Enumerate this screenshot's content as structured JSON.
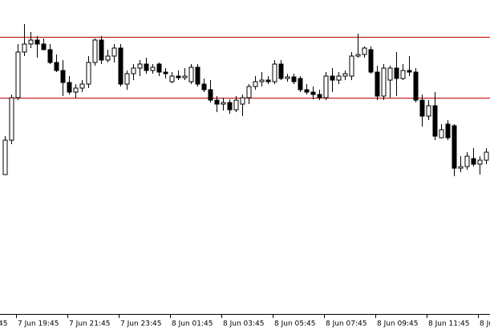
{
  "chart_data": {
    "type": "candlestick",
    "ylim": [
      10,
      400
    ],
    "levels": [
      354,
      278
    ],
    "level_color": "#c00000",
    "up_color": "#ffffff",
    "down_color": "#000000",
    "clipped_left_label": "45",
    "categories": [
      null,
      null,
      "7 Jun 19:45",
      null,
      null,
      null,
      null,
      null,
      null,
      null,
      "7 Jun 21:45",
      null,
      null,
      null,
      null,
      null,
      null,
      null,
      "7 Jun 23:45",
      null,
      null,
      null,
      null,
      null,
      null,
      null,
      "8 Jun 01:45",
      null,
      null,
      null,
      null,
      null,
      null,
      null,
      "8 Jun 03:45",
      null,
      null,
      null,
      null,
      null,
      null,
      null,
      "8 Jun 05:45",
      null,
      null,
      null,
      null,
      null,
      null,
      null,
      "8 Jun 07:45",
      null,
      null,
      null,
      null,
      null,
      null,
      null,
      "8 Jun 09:45",
      null,
      null,
      null,
      null,
      null,
      null,
      null,
      "8 Jun 11:45",
      null,
      null,
      null,
      null,
      null,
      null,
      null,
      "8 Ju",
      null
    ],
    "open": [
      182,
      225,
      278,
      335,
      345,
      350,
      345,
      338,
      322,
      312,
      297,
      285,
      290,
      295,
      322,
      350,
      325,
      330,
      340,
      295,
      308,
      315,
      320,
      312,
      320,
      310,
      298,
      305,
      303,
      298,
      316,
      295,
      288,
      275,
      270,
      272,
      263,
      270,
      278,
      292,
      298,
      300,
      298,
      320,
      302,
      304,
      302,
      288,
      285,
      282,
      278,
      305,
      300,
      305,
      305,
      330,
      332,
      338,
      310,
      280,
      300,
      315,
      302,
      312,
      310,
      275,
      255,
      268,
      228,
      245,
      243,
      190,
      192,
      202,
      195,
      200
    ],
    "high": [
      230,
      282,
      345,
      370,
      360,
      355,
      352,
      345,
      332,
      325,
      305,
      295,
      300,
      330,
      352,
      355,
      338,
      345,
      345,
      312,
      320,
      325,
      328,
      320,
      322,
      315,
      310,
      312,
      315,
      320,
      320,
      302,
      300,
      280,
      278,
      276,
      280,
      282,
      295,
      305,
      310,
      305,
      325,
      325,
      308,
      308,
      305,
      295,
      292,
      288,
      310,
      315,
      310,
      312,
      335,
      358,
      342,
      342,
      318,
      320,
      318,
      335,
      320,
      330,
      315,
      282,
      275,
      285,
      245,
      250,
      245,
      205,
      210,
      215,
      205,
      215
    ],
    "low": [
      182,
      220,
      275,
      330,
      340,
      328,
      338,
      320,
      310,
      280,
      282,
      278,
      285,
      290,
      318,
      320,
      322,
      322,
      292,
      288,
      300,
      305,
      308,
      308,
      305,
      302,
      296,
      300,
      300,
      295,
      292,
      285,
      272,
      260,
      262,
      258,
      260,
      255,
      270,
      288,
      292,
      295,
      295,
      300,
      298,
      295,
      285,
      282,
      276,
      275,
      275,
      285,
      295,
      300,
      300,
      328,
      328,
      308,
      275,
      275,
      278,
      280,
      300,
      305,
      272,
      242,
      250,
      225,
      228,
      225,
      180,
      185,
      188,
      192,
      182,
      195
    ],
    "close": [
      225,
      278,
      335,
      345,
      350,
      345,
      338,
      322,
      312,
      297,
      285,
      290,
      295,
      322,
      350,
      325,
      330,
      340,
      295,
      308,
      315,
      320,
      312,
      316,
      310,
      308,
      305,
      303,
      305,
      316,
      295,
      288,
      275,
      270,
      272,
      263,
      275,
      278,
      292,
      298,
      300,
      298,
      320,
      302,
      304,
      298,
      288,
      285,
      282,
      278,
      305,
      300,
      305,
      308,
      330,
      332,
      340,
      310,
      280,
      315,
      315,
      302,
      312,
      310,
      275,
      255,
      268,
      230,
      238,
      228,
      190,
      192,
      205,
      195,
      200,
      210
    ]
  }
}
